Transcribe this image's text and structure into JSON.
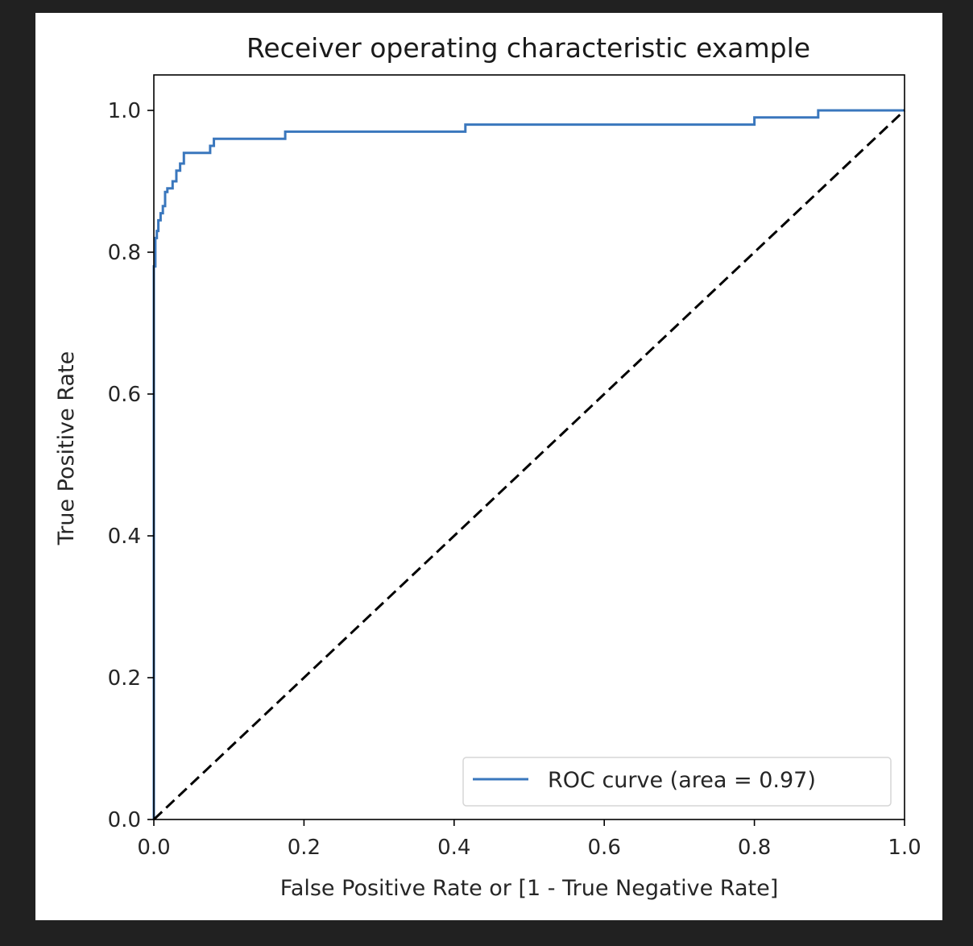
{
  "chart_data": {
    "type": "line",
    "title": "Receiver operating characteristic example",
    "xlabel": "False Positive Rate or [1 - True Negative Rate]",
    "ylabel": "True Positive Rate",
    "xlim": [
      0.0,
      1.0
    ],
    "ylim": [
      0.0,
      1.05
    ],
    "xticks": [
      "0.0",
      "0.2",
      "0.4",
      "0.6",
      "0.8",
      "1.0"
    ],
    "yticks": [
      "0.0",
      "0.2",
      "0.4",
      "0.6",
      "0.8",
      "1.0"
    ],
    "grid": false,
    "legend_position": "lower-right",
    "series": [
      {
        "name": "ROC curve (area = 0.97)",
        "color": "#3a77bd",
        "style": "solid",
        "x": [
          0.0,
          0.0,
          0.002,
          0.002,
          0.004,
          0.004,
          0.006,
          0.006,
          0.009,
          0.009,
          0.012,
          0.012,
          0.015,
          0.015,
          0.018,
          0.018,
          0.025,
          0.025,
          0.03,
          0.03,
          0.035,
          0.035,
          0.04,
          0.04,
          0.075,
          0.075,
          0.08,
          0.08,
          0.175,
          0.175,
          0.415,
          0.415,
          0.8,
          0.8,
          0.885,
          0.885,
          1.0
        ],
        "y": [
          0.0,
          0.78,
          0.78,
          0.82,
          0.82,
          0.83,
          0.83,
          0.845,
          0.845,
          0.855,
          0.855,
          0.865,
          0.865,
          0.885,
          0.885,
          0.89,
          0.89,
          0.9,
          0.9,
          0.915,
          0.915,
          0.925,
          0.925,
          0.94,
          0.94,
          0.95,
          0.95,
          0.96,
          0.96,
          0.97,
          0.97,
          0.98,
          0.98,
          0.99,
          0.99,
          1.0,
          1.0
        ]
      },
      {
        "name": "",
        "color": "#000000",
        "style": "dashed",
        "x": [
          0.0,
          1.0
        ],
        "y": [
          0.0,
          1.0
        ]
      }
    ]
  }
}
